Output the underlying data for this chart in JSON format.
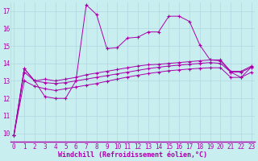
{
  "xlabel": "Windchill (Refroidissement éolien,°C)",
  "background_color": "#c8eef0",
  "grid_color": "#b0d8e0",
  "line_color": "#aa00aa",
  "x_ticks": [
    0,
    1,
    2,
    3,
    4,
    5,
    6,
    7,
    8,
    9,
    10,
    11,
    12,
    13,
    14,
    15,
    16,
    17,
    18,
    19,
    20,
    21,
    22,
    23
  ],
  "y_ticks": [
    10,
    11,
    12,
    13,
    14,
    15,
    16,
    17
  ],
  "ylim": [
    9.5,
    17.5
  ],
  "xlim": [
    -0.3,
    23.3
  ],
  "series1_y": [
    9.9,
    13.7,
    13.0,
    12.1,
    12.0,
    12.0,
    13.0,
    17.35,
    16.8,
    14.85,
    14.9,
    15.45,
    15.5,
    15.8,
    15.8,
    16.7,
    16.7,
    16.4,
    15.05,
    14.2,
    14.15,
    13.5,
    13.2,
    13.8
  ],
  "series2_y": [
    9.9,
    13.7,
    13.0,
    13.1,
    13.0,
    13.1,
    13.2,
    13.35,
    13.45,
    13.55,
    13.65,
    13.75,
    13.85,
    13.92,
    13.95,
    14.0,
    14.05,
    14.1,
    14.15,
    14.2,
    14.2,
    13.55,
    13.55,
    13.85
  ],
  "series3_y": [
    9.9,
    13.5,
    13.0,
    12.9,
    12.85,
    12.9,
    13.0,
    13.1,
    13.2,
    13.3,
    13.4,
    13.5,
    13.6,
    13.7,
    13.78,
    13.85,
    13.9,
    13.95,
    14.0,
    14.05,
    14.0,
    13.5,
    13.5,
    13.78
  ],
  "series4_y": [
    9.9,
    13.0,
    12.7,
    12.55,
    12.45,
    12.55,
    12.65,
    12.75,
    12.85,
    12.98,
    13.1,
    13.22,
    13.32,
    13.42,
    13.5,
    13.58,
    13.63,
    13.68,
    13.72,
    13.75,
    13.75,
    13.2,
    13.2,
    13.5
  ],
  "xlabel_fontsize": 6,
  "tick_fontsize": 5.5
}
